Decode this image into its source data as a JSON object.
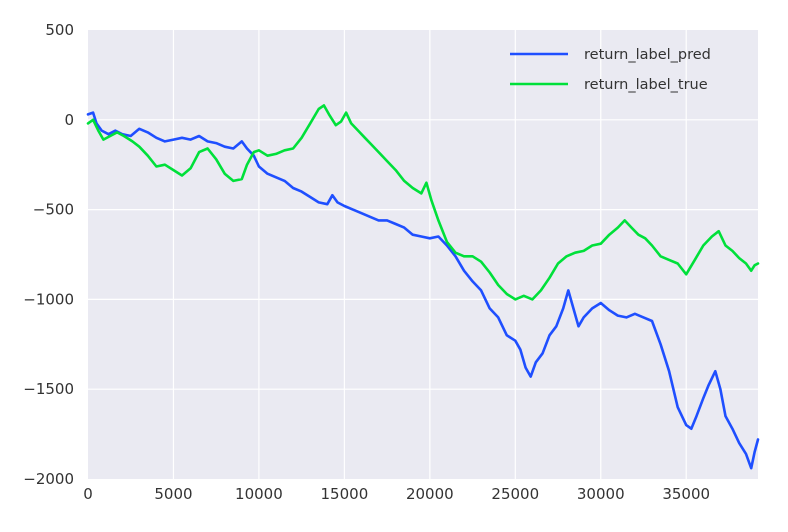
{
  "chart_data": {
    "type": "line",
    "title": "",
    "xlabel": "",
    "ylabel": "",
    "xlim": [
      0,
      39200
    ],
    "ylim": [
      -2000,
      500
    ],
    "x_ticks": [
      0,
      5000,
      10000,
      15000,
      20000,
      25000,
      30000,
      35000
    ],
    "x_tick_labels": [
      "0",
      "5000",
      "10000",
      "15000",
      "20000",
      "25000",
      "30000",
      "35000"
    ],
    "y_ticks": [
      500,
      0,
      -500,
      -1000,
      -1500,
      -2000
    ],
    "y_tick_labels": [
      "500",
      "0",
      "−500",
      "−1000",
      "−1500",
      "−2000"
    ],
    "grid": true,
    "background": "#eaeaf2",
    "legend": "top-right",
    "series": [
      {
        "name": "return_label_pred",
        "color": "#1f4fff",
        "points": [
          [
            0,
            30
          ],
          [
            300,
            40
          ],
          [
            500,
            -20
          ],
          [
            800,
            -60
          ],
          [
            1200,
            -80
          ],
          [
            1600,
            -60
          ],
          [
            2000,
            -80
          ],
          [
            2500,
            -90
          ],
          [
            3000,
            -50
          ],
          [
            3500,
            -70
          ],
          [
            4000,
            -100
          ],
          [
            4500,
            -120
          ],
          [
            5000,
            -110
          ],
          [
            5500,
            -100
          ],
          [
            6000,
            -110
          ],
          [
            6500,
            -90
          ],
          [
            7000,
            -120
          ],
          [
            7500,
            -130
          ],
          [
            8000,
            -150
          ],
          [
            8500,
            -160
          ],
          [
            9000,
            -120
          ],
          [
            9300,
            -160
          ],
          [
            9700,
            -200
          ],
          [
            10000,
            -260
          ],
          [
            10500,
            -300
          ],
          [
            11000,
            -320
          ],
          [
            11500,
            -340
          ],
          [
            12000,
            -380
          ],
          [
            12500,
            -400
          ],
          [
            13000,
            -430
          ],
          [
            13500,
            -460
          ],
          [
            14000,
            -470
          ],
          [
            14300,
            -420
          ],
          [
            14600,
            -460
          ],
          [
            15000,
            -480
          ],
          [
            15500,
            -500
          ],
          [
            16000,
            -520
          ],
          [
            16500,
            -540
          ],
          [
            17000,
            -560
          ],
          [
            17500,
            -560
          ],
          [
            18000,
            -580
          ],
          [
            18500,
            -600
          ],
          [
            19000,
            -640
          ],
          [
            19500,
            -650
          ],
          [
            20000,
            -660
          ],
          [
            20500,
            -650
          ],
          [
            21000,
            -700
          ],
          [
            21500,
            -760
          ],
          [
            22000,
            -840
          ],
          [
            22500,
            -900
          ],
          [
            23000,
            -950
          ],
          [
            23500,
            -1050
          ],
          [
            24000,
            -1100
          ],
          [
            24500,
            -1200
          ],
          [
            25000,
            -1230
          ],
          [
            25300,
            -1280
          ],
          [
            25600,
            -1380
          ],
          [
            25900,
            -1430
          ],
          [
            26200,
            -1350
          ],
          [
            26600,
            -1300
          ],
          [
            27000,
            -1200
          ],
          [
            27400,
            -1150
          ],
          [
            27800,
            -1050
          ],
          [
            28100,
            -950
          ],
          [
            28400,
            -1050
          ],
          [
            28700,
            -1150
          ],
          [
            29000,
            -1100
          ],
          [
            29500,
            -1050
          ],
          [
            30000,
            -1020
          ],
          [
            30500,
            -1060
          ],
          [
            31000,
            -1090
          ],
          [
            31500,
            -1100
          ],
          [
            32000,
            -1080
          ],
          [
            32500,
            -1100
          ],
          [
            33000,
            -1120
          ],
          [
            33500,
            -1250
          ],
          [
            34000,
            -1400
          ],
          [
            34500,
            -1600
          ],
          [
            35000,
            -1700
          ],
          [
            35300,
            -1720
          ],
          [
            35600,
            -1650
          ],
          [
            36000,
            -1550
          ],
          [
            36300,
            -1480
          ],
          [
            36700,
            -1400
          ],
          [
            37000,
            -1500
          ],
          [
            37300,
            -1650
          ],
          [
            37700,
            -1720
          ],
          [
            38100,
            -1800
          ],
          [
            38500,
            -1860
          ],
          [
            38800,
            -1940
          ],
          [
            39000,
            -1850
          ],
          [
            39200,
            -1780
          ]
        ]
      },
      {
        "name": "return_label_true",
        "color": "#00e03a",
        "points": [
          [
            0,
            -20
          ],
          [
            300,
            0
          ],
          [
            600,
            -60
          ],
          [
            900,
            -110
          ],
          [
            1300,
            -90
          ],
          [
            1700,
            -70
          ],
          [
            2100,
            -90
          ],
          [
            2600,
            -120
          ],
          [
            3000,
            -150
          ],
          [
            3500,
            -200
          ],
          [
            4000,
            -260
          ],
          [
            4500,
            -250
          ],
          [
            5000,
            -280
          ],
          [
            5500,
            -310
          ],
          [
            6000,
            -270
          ],
          [
            6500,
            -180
          ],
          [
            7000,
            -160
          ],
          [
            7500,
            -220
          ],
          [
            8000,
            -300
          ],
          [
            8500,
            -340
          ],
          [
            9000,
            -330
          ],
          [
            9300,
            -250
          ],
          [
            9700,
            -180
          ],
          [
            10000,
            -170
          ],
          [
            10500,
            -200
          ],
          [
            11000,
            -190
          ],
          [
            11500,
            -170
          ],
          [
            12000,
            -160
          ],
          [
            12500,
            -100
          ],
          [
            13000,
            -20
          ],
          [
            13500,
            60
          ],
          [
            13800,
            80
          ],
          [
            14100,
            30
          ],
          [
            14500,
            -30
          ],
          [
            14800,
            -10
          ],
          [
            15100,
            40
          ],
          [
            15400,
            -20
          ],
          [
            15800,
            -60
          ],
          [
            16200,
            -100
          ],
          [
            16600,
            -140
          ],
          [
            17000,
            -180
          ],
          [
            17500,
            -230
          ],
          [
            18000,
            -280
          ],
          [
            18500,
            -340
          ],
          [
            19000,
            -380
          ],
          [
            19500,
            -410
          ],
          [
            19800,
            -350
          ],
          [
            20100,
            -450
          ],
          [
            20500,
            -560
          ],
          [
            21000,
            -680
          ],
          [
            21500,
            -740
          ],
          [
            22000,
            -760
          ],
          [
            22500,
            -760
          ],
          [
            23000,
            -790
          ],
          [
            23500,
            -850
          ],
          [
            24000,
            -920
          ],
          [
            24500,
            -970
          ],
          [
            25000,
            -1000
          ],
          [
            25500,
            -980
          ],
          [
            26000,
            -1000
          ],
          [
            26500,
            -950
          ],
          [
            27000,
            -880
          ],
          [
            27500,
            -800
          ],
          [
            28000,
            -760
          ],
          [
            28500,
            -740
          ],
          [
            29000,
            -730
          ],
          [
            29500,
            -700
          ],
          [
            30000,
            -690
          ],
          [
            30500,
            -640
          ],
          [
            31000,
            -600
          ],
          [
            31400,
            -560
          ],
          [
            31800,
            -600
          ],
          [
            32200,
            -640
          ],
          [
            32600,
            -660
          ],
          [
            33000,
            -700
          ],
          [
            33500,
            -760
          ],
          [
            34000,
            -780
          ],
          [
            34500,
            -800
          ],
          [
            35000,
            -860
          ],
          [
            35500,
            -780
          ],
          [
            36000,
            -700
          ],
          [
            36500,
            -650
          ],
          [
            36900,
            -620
          ],
          [
            37300,
            -700
          ],
          [
            37700,
            -730
          ],
          [
            38100,
            -770
          ],
          [
            38500,
            -800
          ],
          [
            38800,
            -840
          ],
          [
            39000,
            -810
          ],
          [
            39200,
            -800
          ]
        ]
      }
    ]
  }
}
